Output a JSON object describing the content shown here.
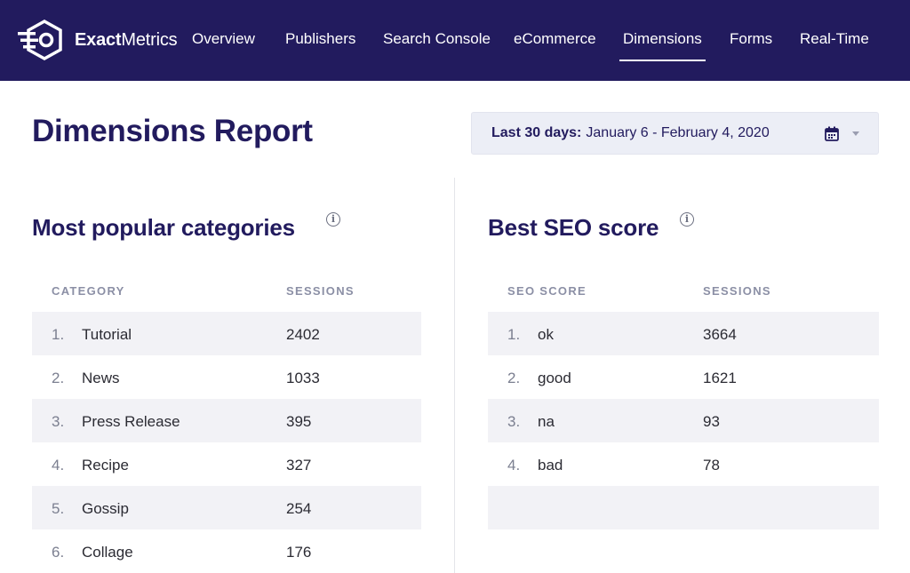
{
  "brand": {
    "name_bold": "Exact",
    "name_rest": "Metrics"
  },
  "nav": {
    "items": [
      {
        "label": "Overview"
      },
      {
        "label": "Publishers"
      },
      {
        "label": "Search Console"
      },
      {
        "label": "eCommerce"
      },
      {
        "label": "Dimensions",
        "active": true
      },
      {
        "label": "Forms"
      },
      {
        "label": "Real-Time"
      }
    ]
  },
  "page": {
    "title": "Dimensions Report"
  },
  "date_picker": {
    "label": "Last 30 days:",
    "range": "January 6 - February 4, 2020",
    "icons": [
      "calendar-icon",
      "caret-down-icon"
    ]
  },
  "categories": {
    "title": "Most popular categories",
    "headers": {
      "col1": "CATEGORY",
      "col2": "SESSIONS"
    },
    "rows": [
      {
        "num": "1.",
        "name": "Tutorial",
        "value": "2402"
      },
      {
        "num": "2.",
        "name": "News",
        "value": "1033"
      },
      {
        "num": "3.",
        "name": "Press Release",
        "value": "395"
      },
      {
        "num": "4.",
        "name": "Recipe",
        "value": "327"
      },
      {
        "num": "5.",
        "name": "Gossip",
        "value": "254"
      },
      {
        "num": "6.",
        "name": "Collage",
        "value": "176"
      }
    ]
  },
  "seo": {
    "title": "Best SEO score",
    "headers": {
      "col1": "SEO SCORE",
      "col2": "SESSIONS"
    },
    "rows": [
      {
        "num": "1.",
        "name": "ok",
        "value": "3664"
      },
      {
        "num": "2.",
        "name": "good",
        "value": "1621"
      },
      {
        "num": "3.",
        "name": "na",
        "value": "93"
      },
      {
        "num": "4.",
        "name": "bad",
        "value": "78"
      }
    ]
  },
  "colors": {
    "nav_bg": "#221b5e",
    "accent": "#221b5e",
    "stripe": "#f2f2f6"
  }
}
